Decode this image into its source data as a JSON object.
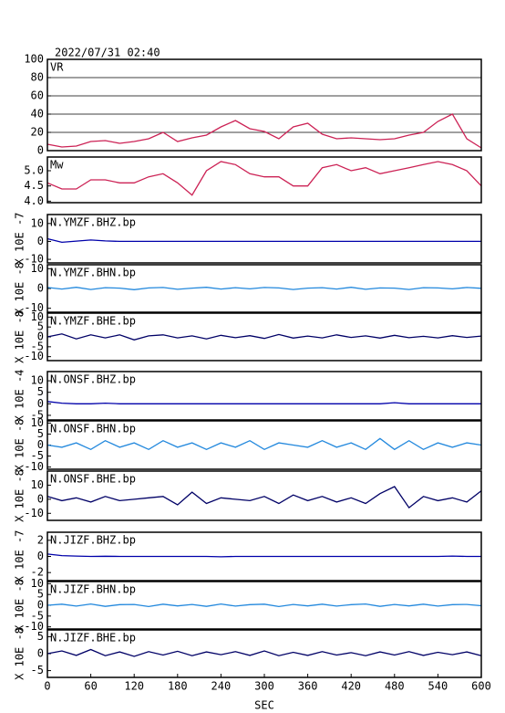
{
  "chart_data": [
    {
      "type": "line",
      "title": "2022/07/31 02:40",
      "label": "VR",
      "color": "#cc2255",
      "grid": true,
      "x": [
        0,
        20,
        40,
        60,
        80,
        100,
        120,
        140,
        160,
        180,
        200,
        220,
        240,
        260,
        280,
        300,
        320,
        340,
        360,
        380,
        400,
        420,
        440,
        460,
        480,
        500,
        520,
        540,
        560,
        580,
        600
      ],
      "values": [
        7,
        4,
        5,
        10,
        11,
        8,
        10,
        13,
        20,
        10,
        14,
        17,
        26,
        33,
        24,
        21,
        13,
        26,
        30,
        18,
        13,
        14,
        13,
        12,
        13,
        17,
        20,
        32,
        40,
        13,
        3
      ],
      "xlim": [
        0,
        600
      ],
      "ylim": [
        0,
        100
      ],
      "yticks": [
        0,
        20,
        40,
        60,
        80,
        100
      ]
    },
    {
      "type": "line",
      "label": "Mw",
      "color": "#cc2255",
      "x": [
        0,
        20,
        40,
        60,
        80,
        100,
        120,
        140,
        160,
        180,
        200,
        220,
        240,
        260,
        280,
        300,
        320,
        340,
        360,
        380,
        400,
        420,
        440,
        460,
        480,
        500,
        520,
        540,
        560,
        580,
        600
      ],
      "values": [
        4.6,
        4.4,
        4.4,
        4.7,
        4.7,
        4.6,
        4.6,
        4.8,
        4.9,
        4.6,
        4.2,
        5.0,
        5.3,
        5.2,
        4.9,
        4.8,
        4.8,
        4.5,
        4.5,
        5.1,
        5.2,
        5.0,
        5.1,
        4.9,
        5.0,
        5.1,
        5.2,
        5.3,
        5.2,
        5.0,
        4.5
      ],
      "xlim": [
        0,
        600
      ],
      "ylim": [
        3.95,
        5.45
      ],
      "yticks": [
        {
          "value": 4,
          "label": "4.0"
        },
        {
          "value": 4.5,
          "label": "4.5"
        },
        {
          "value": 5,
          "label": "5.0"
        }
      ]
    },
    {
      "type": "line",
      "label": "N.YMZF.BHZ.bp",
      "unit": "X 10E -7",
      "color": "#0000aa",
      "x": [
        0,
        20,
        40,
        60,
        80,
        100,
        120,
        140,
        160,
        180,
        200,
        220,
        240,
        260,
        280,
        300,
        320,
        340,
        360,
        380,
        400,
        420,
        440,
        460,
        480,
        500,
        520,
        540,
        560,
        580,
        600
      ],
      "values": [
        1.5,
        -0.5,
        0.2,
        0.8,
        0.3,
        0,
        0,
        0,
        0,
        0,
        0,
        0,
        0,
        0,
        0,
        0,
        0,
        0,
        0,
        0,
        0,
        0,
        0,
        0,
        0,
        0,
        0,
        0,
        0,
        0,
        0
      ],
      "xlim": [
        0,
        600
      ],
      "ylim": [
        -12,
        15
      ],
      "yticks": [
        10,
        0,
        -10
      ]
    },
    {
      "type": "line",
      "label": "N.YMZF.BHN.bp",
      "unit": "X 10E -8",
      "color": "#2288dd",
      "x": [
        0,
        20,
        40,
        60,
        80,
        100,
        120,
        140,
        160,
        180,
        200,
        220,
        240,
        260,
        280,
        300,
        320,
        340,
        360,
        380,
        400,
        420,
        440,
        460,
        480,
        500,
        520,
        540,
        560,
        580,
        600
      ],
      "values": [
        0.5,
        -0.3,
        0.6,
        -0.5,
        0.4,
        0.2,
        -0.6,
        0.3,
        0.5,
        -0.4,
        0.2,
        0.6,
        -0.3,
        0.4,
        -0.2,
        0.5,
        0.3,
        -0.5,
        0.2,
        0.4,
        -0.3,
        0.6,
        -0.4,
        0.3,
        0.2,
        -0.5,
        0.4,
        0.3,
        -0.2,
        0.5,
        0.1
      ],
      "xlim": [
        0,
        600
      ],
      "ylim": [
        -12,
        12
      ],
      "yticks": [
        10,
        0,
        -10
      ]
    },
    {
      "type": "line",
      "label": "N.YMZF.BHE.bp",
      "unit": "X 10E -8",
      "color": "#000066",
      "x": [
        0,
        20,
        40,
        60,
        80,
        100,
        120,
        140,
        160,
        180,
        200,
        220,
        240,
        260,
        280,
        300,
        320,
        340,
        360,
        380,
        400,
        420,
        440,
        460,
        480,
        500,
        520,
        540,
        560,
        580,
        600
      ],
      "values": [
        0,
        1.5,
        -1,
        1,
        -0.5,
        1,
        -1.5,
        0.5,
        1,
        -0.5,
        0.5,
        -1,
        0.8,
        -0.4,
        0.6,
        -0.8,
        1.2,
        -0.6,
        0.4,
        -0.5,
        1,
        -0.3,
        0.5,
        -0.6,
        0.8,
        -0.4,
        0.3,
        -0.5,
        0.6,
        -0.3,
        0.4
      ],
      "xlim": [
        0,
        600
      ],
      "ylim": [
        -12,
        12
      ],
      "yticks": [
        10,
        5,
        0,
        -5,
        -10
      ]
    },
    {
      "type": "line",
      "label": "N.ONSF.BHZ.bp",
      "unit": "X 10E -4",
      "color": "#0000aa",
      "x": [
        0,
        20,
        40,
        60,
        80,
        100,
        120,
        140,
        160,
        180,
        200,
        220,
        240,
        260,
        280,
        300,
        320,
        340,
        360,
        380,
        400,
        420,
        440,
        460,
        480,
        500,
        520,
        540,
        560,
        580,
        600
      ],
      "values": [
        1,
        0.3,
        0,
        0,
        0.3,
        0,
        0,
        0,
        0,
        0,
        0,
        0,
        0,
        0,
        0,
        0,
        0,
        0,
        0,
        0,
        0,
        0,
        0,
        0,
        0.5,
        0,
        0,
        0,
        0,
        0,
        0
      ],
      "xlim": [
        0,
        600
      ],
      "ylim": [
        -7,
        14
      ],
      "yticks": [
        10,
        5,
        0,
        -5
      ]
    },
    {
      "type": "line",
      "label": "N.ONSF.BHN.bp",
      "unit": "X 10E -8",
      "color": "#2288dd",
      "x": [
        0,
        20,
        40,
        60,
        80,
        100,
        120,
        140,
        160,
        180,
        200,
        220,
        240,
        260,
        280,
        300,
        320,
        340,
        360,
        380,
        400,
        420,
        440,
        460,
        480,
        500,
        520,
        540,
        560,
        580,
        600
      ],
      "values": [
        0,
        -1,
        1,
        -2,
        2,
        -1,
        1,
        -2,
        2,
        -1,
        1,
        -2,
        1,
        -1,
        2,
        -2,
        1,
        0,
        -1,
        2,
        -1,
        1,
        -2,
        3,
        -2,
        2,
        -2,
        1,
        -1,
        1,
        0
      ],
      "xlim": [
        0,
        600
      ],
      "ylim": [
        -11,
        11
      ],
      "yticks": [
        10,
        5,
        0,
        -5,
        -10
      ]
    },
    {
      "type": "line",
      "label": "N.ONSF.BHE.bp",
      "unit": "X 10E -8",
      "color": "#000066",
      "x": [
        0,
        20,
        40,
        60,
        80,
        100,
        120,
        140,
        160,
        180,
        200,
        220,
        240,
        260,
        280,
        300,
        320,
        340,
        360,
        380,
        400,
        420,
        440,
        460,
        480,
        500,
        520,
        540,
        560,
        580,
        600
      ],
      "values": [
        2,
        -1,
        1,
        -2,
        2,
        -1,
        0,
        1,
        2,
        -4,
        5,
        -3,
        1,
        0,
        -1,
        2,
        -3,
        3,
        -1,
        2,
        -2,
        1,
        -3,
        4,
        9,
        -6,
        2,
        -1,
        1,
        -2,
        6
      ],
      "xlim": [
        0,
        600
      ],
      "ylim": [
        -15,
        20
      ],
      "yticks": [
        10,
        0,
        -10
      ]
    },
    {
      "type": "line",
      "label": "N.JIZF.BHZ.bp",
      "unit": "X 10E -7",
      "color": "#0000aa",
      "x": [
        0,
        20,
        40,
        60,
        80,
        100,
        120,
        140,
        160,
        180,
        200,
        220,
        240,
        260,
        280,
        300,
        320,
        340,
        360,
        380,
        400,
        420,
        440,
        460,
        480,
        500,
        520,
        540,
        560,
        580,
        600
      ],
      "values": [
        0.3,
        0.1,
        0.05,
        0,
        0.02,
        0,
        0,
        0,
        0,
        0,
        0,
        0,
        -0.05,
        0,
        0,
        0,
        0,
        0,
        0,
        0,
        0,
        0,
        0,
        0,
        0,
        0,
        0,
        0,
        0.05,
        0,
        0
      ],
      "xlim": [
        0,
        600
      ],
      "ylim": [
        -3,
        3
      ],
      "yticks": [
        2,
        0,
        -2
      ]
    },
    {
      "type": "line",
      "label": "N.JIZF.BHN.bp",
      "unit": "X 10E -8",
      "color": "#2288dd",
      "x": [
        0,
        20,
        40,
        60,
        80,
        100,
        120,
        140,
        160,
        180,
        200,
        220,
        240,
        260,
        280,
        300,
        320,
        340,
        360,
        380,
        400,
        420,
        440,
        460,
        480,
        500,
        520,
        540,
        560,
        580,
        600
      ],
      "values": [
        0,
        0.5,
        -0.4,
        0.6,
        -0.5,
        0.3,
        0.4,
        -0.6,
        0.5,
        -0.3,
        0.4,
        -0.5,
        0.6,
        -0.4,
        0.3,
        0.5,
        -0.6,
        0.4,
        -0.3,
        0.5,
        -0.4,
        0.3,
        0.6,
        -0.5,
        0.4,
        -0.3,
        0.5,
        -0.4,
        0.3,
        0.4,
        -0.2
      ],
      "xlim": [
        0,
        600
      ],
      "ylim": [
        -11,
        11
      ],
      "yticks": [
        10,
        5,
        0,
        -5,
        -10
      ]
    },
    {
      "type": "line",
      "label": "N.JIZF.BHE.bp",
      "unit": "X 10E -8",
      "color": "#000066",
      "x": [
        0,
        20,
        40,
        60,
        80,
        100,
        120,
        140,
        160,
        180,
        200,
        220,
        240,
        260,
        280,
        300,
        320,
        340,
        360,
        380,
        400,
        420,
        440,
        460,
        480,
        500,
        520,
        540,
        560,
        580,
        600
      ],
      "values": [
        0,
        0.8,
        -0.5,
        1.2,
        -0.6,
        0.5,
        -0.8,
        0.6,
        -0.4,
        0.7,
        -0.6,
        0.5,
        -0.3,
        0.6,
        -0.5,
        0.8,
        -0.6,
        0.4,
        -0.5,
        0.6,
        -0.4,
        0.3,
        -0.6,
        0.5,
        -0.4,
        0.6,
        -0.5,
        0.4,
        -0.3,
        0.5,
        -0.6
      ],
      "xlim": [
        0,
        600
      ],
      "ylim": [
        -7,
        7
      ],
      "yticks": [
        5,
        0,
        -5
      ],
      "xticks": [
        0,
        60,
        120,
        180,
        240,
        300,
        360,
        420,
        480,
        540,
        600
      ],
      "xlabel": "SEC"
    }
  ]
}
